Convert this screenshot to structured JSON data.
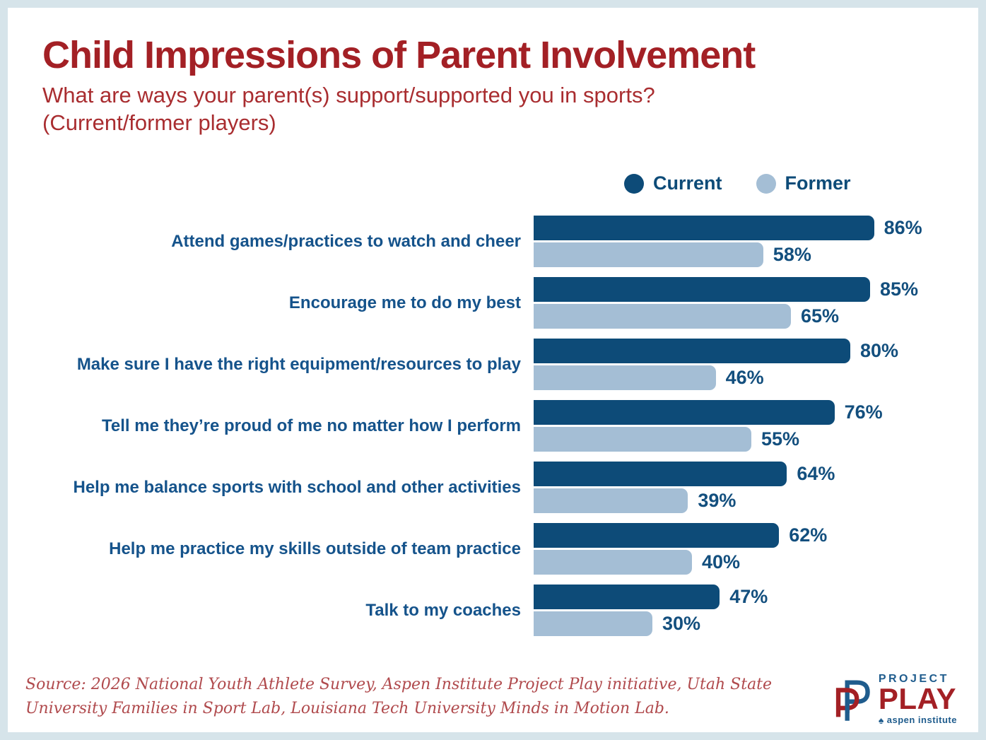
{
  "page": {
    "title": "Child Impressions of Parent Involvement",
    "subtitle": "What are ways your parent(s) support/supported you in sports?\n(Current/former players)"
  },
  "chart_data": {
    "type": "bar",
    "orientation": "horizontal",
    "title": "Child Impressions of Parent Involvement",
    "subtitle": "What are ways your parent(s) support/supported you in sports? (Current/former players)",
    "categories": [
      "Attend games/practices to watch and cheer",
      "Encourage me to do my best",
      "Make sure I have the right equipment/resources to play",
      "Tell me they’re proud of me no matter how I perform",
      "Help me balance sports with school and other activities",
      "Help me practice my skills outside of team practice",
      "Talk to my coaches"
    ],
    "series": [
      {
        "name": "Current",
        "color": "#0d4b78",
        "values": [
          86,
          85,
          80,
          76,
          64,
          62,
          47
        ]
      },
      {
        "name": "Former",
        "color": "#a4bed5",
        "values": [
          58,
          65,
          46,
          55,
          39,
          40,
          30
        ]
      }
    ],
    "value_suffix": "%",
    "xlim": [
      0,
      100
    ],
    "grid": false,
    "legend_position": "top-right",
    "data_labels": true
  },
  "source": {
    "text": "Source: 2026 National Youth Athlete Survey, Aspen Institute Project Play initiative, Utah State\nUniversity Families in Sport Lab, Louisiana Tech University Minds in Motion Lab."
  },
  "logo": {
    "project": "PROJECT",
    "play": "PLAY",
    "org": "aspen institute",
    "leaf_glyph": "♠"
  },
  "colors": {
    "frame": "#d6e4ea",
    "card": "#ffffff",
    "title_red": "#a32025",
    "subtitle_red": "#a92d30",
    "current_blue": "#0d4b78",
    "former_blue": "#a4bed5",
    "label_blue": "#15538b",
    "value_blue": "#134f7e",
    "source_red": "#b04a4d",
    "logo_navy": "#1f5c8d"
  }
}
